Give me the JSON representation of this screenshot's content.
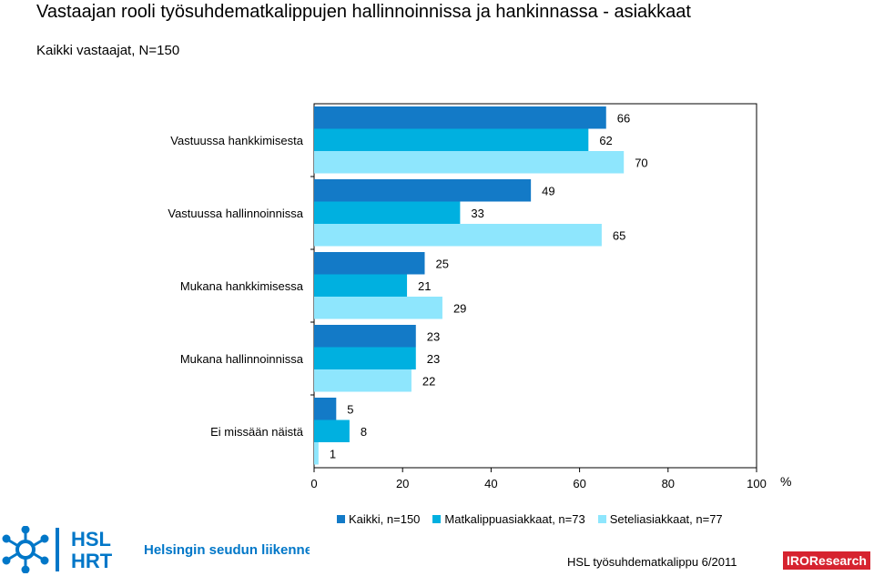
{
  "header": {
    "title": "Vastaajan rooli työsuhdematkalippujen hallinnoinnissa ja hankinnassa  - asiakkaat",
    "subtitle": "Kaikki vastaajat, N=150"
  },
  "chart_data": {
    "type": "bar",
    "orientation": "horizontal",
    "categories": [
      "Vastuussa hankkimisesta",
      "Vastuussa hallinnoinnissa",
      "Mukana hankkimisessa",
      "Mukana hallinnoinnissa",
      "Ei missään näistä"
    ],
    "series": [
      {
        "name": "Kaikki, n=150",
        "color": "#137ac7",
        "values": [
          66,
          49,
          25,
          23,
          5
        ]
      },
      {
        "name": "Matkalippuasiakkaat, n=73",
        "color": "#00b0e0",
        "values": [
          62,
          33,
          21,
          23,
          8
        ]
      },
      {
        "name": "Seteliasiakkaat, n=77",
        "color": "#8ee6fd",
        "values": [
          70,
          65,
          29,
          22,
          1
        ]
      }
    ],
    "xlim": [
      0,
      100
    ],
    "xticks": [
      "0",
      "20",
      "40",
      "60",
      "80",
      "100"
    ],
    "xunit": "%",
    "legend_position": "bottom",
    "grid": false
  },
  "footer": {
    "logo_text_1": "HSL",
    "logo_text_2": "HRT",
    "logo_caption": "Helsingin seudun liikenne",
    "source": "HSL työsuhdematkalippu  6/2011",
    "brand": "IROResearch"
  }
}
